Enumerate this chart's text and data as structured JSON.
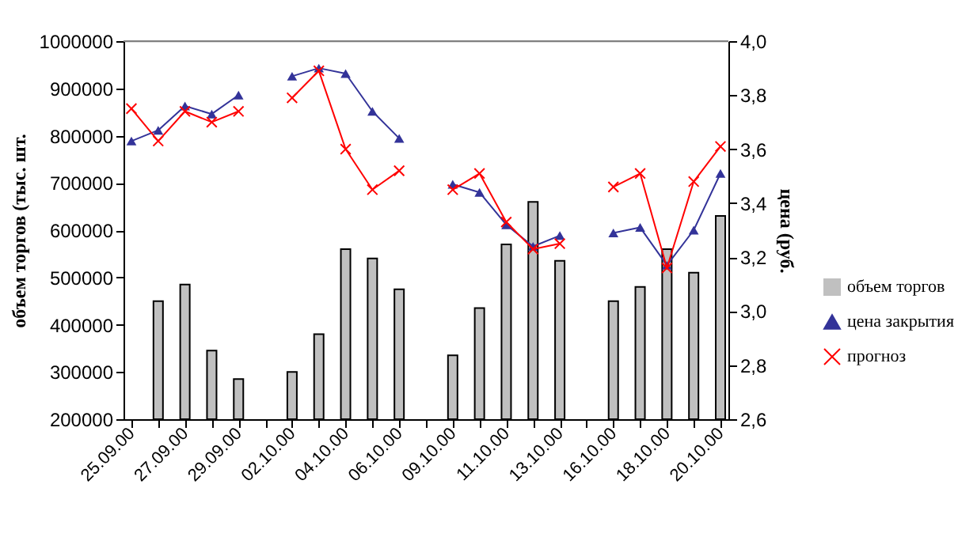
{
  "chart_data": {
    "type": "bar",
    "xlabel": null,
    "ylabel": "объем торгов (тыс. шт.",
    "y2label": "цена (руб.",
    "categories": [
      "25.09.00",
      null,
      "27.09.00",
      null,
      "29.09.00",
      null,
      "02.10.00",
      null,
      "04.10.00",
      null,
      "06.10.00",
      null,
      "09.10.00",
      null,
      "11.10.00",
      null,
      "13.10.00",
      null,
      "16.10.00",
      null,
      "18.10.00",
      null,
      "20.10.00"
    ],
    "series": [
      {
        "name": "объем торгов",
        "color": "#c0c0c0",
        "values": [
          null,
          450000,
          485000,
          345000,
          285000,
          null,
          300000,
          380000,
          560000,
          540000,
          475000,
          null,
          335000,
          435000,
          570000,
          660000,
          535000,
          null,
          450000,
          480000,
          560000,
          510000,
          630000
        ]
      },
      {
        "name": "цена закрытия",
        "type": "line",
        "axis": "y2",
        "color": "#333399",
        "marker": "triangle",
        "values": [
          3.63,
          3.67,
          3.76,
          3.73,
          3.8,
          null,
          3.87,
          3.9,
          3.88,
          3.74,
          3.64,
          null,
          3.47,
          3.44,
          3.32,
          3.24,
          3.28,
          null,
          3.29,
          3.31,
          3.17,
          3.3,
          3.51
        ]
      },
      {
        "name": "прогноз",
        "type": "line",
        "axis": "y2",
        "color": "#ff0000",
        "marker": "cross",
        "values": [
          3.75,
          3.63,
          3.74,
          3.7,
          3.74,
          null,
          3.79,
          3.89,
          3.6,
          3.45,
          3.52,
          null,
          3.45,
          3.51,
          3.33,
          3.23,
          3.25,
          null,
          3.46,
          3.51,
          3.16,
          3.48,
          3.61
        ]
      }
    ],
    "ylim": [
      200000,
      1000000
    ],
    "yticks": [
      200000,
      300000,
      400000,
      500000,
      600000,
      700000,
      800000,
      900000,
      1000000
    ],
    "y2lim": [
      2.6,
      4.0
    ],
    "y2ticks": [
      {
        "value": 2.6,
        "label": "2,6"
      },
      {
        "value": 2.8,
        "label": "2,8"
      },
      {
        "value": 3.0,
        "label": "3,0"
      },
      {
        "value": 3.2,
        "label": "3,2"
      },
      {
        "value": 3.4,
        "label": "3,4"
      },
      {
        "value": 3.6,
        "label": "3,6"
      },
      {
        "value": 3.8,
        "label": "3,8"
      },
      {
        "value": 4.0,
        "label": "4,0"
      }
    ],
    "grid": false,
    "legend": "right"
  }
}
